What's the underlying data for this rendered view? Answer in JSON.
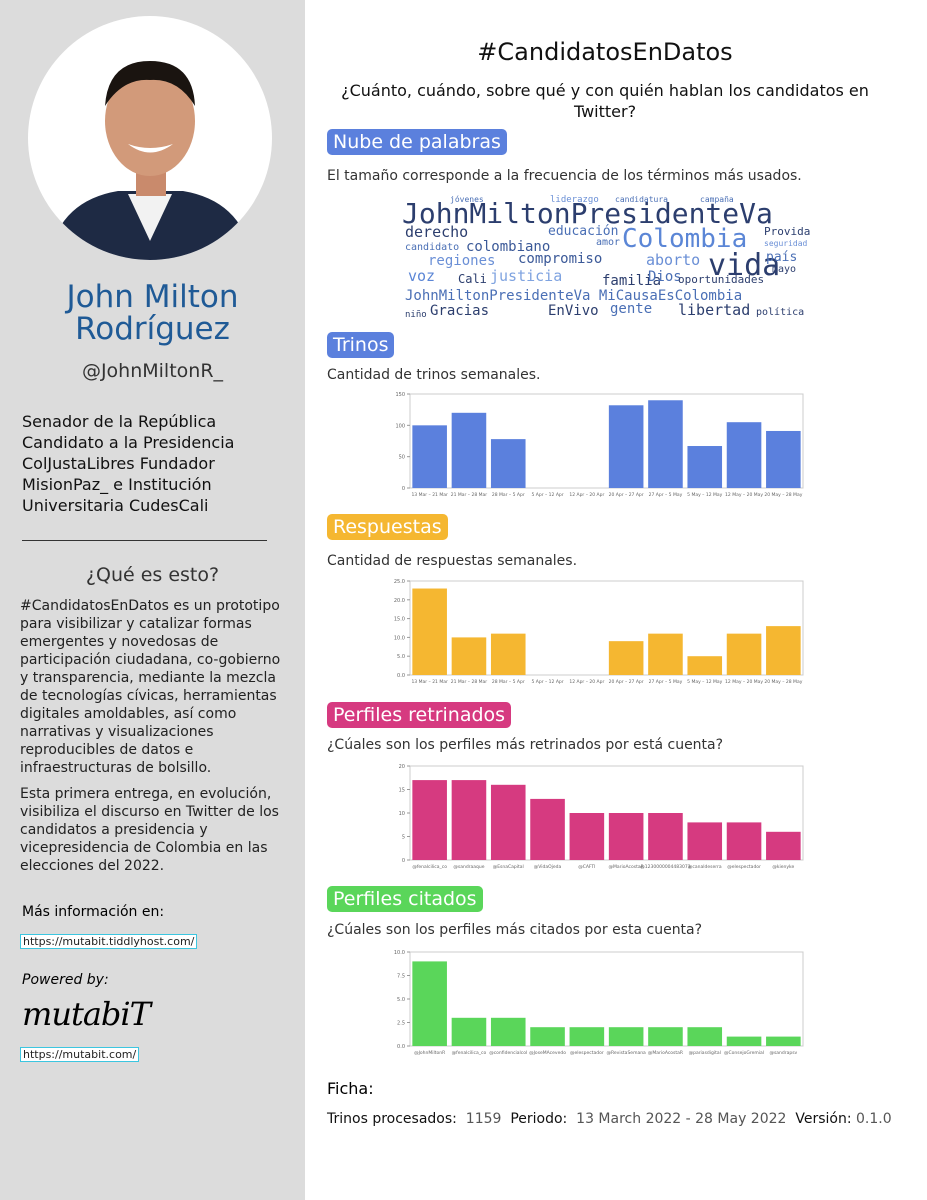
{
  "sidebar": {
    "name": "John Milton Rodríguez",
    "handle": "@JohnMiltonR_",
    "bio": [
      "Senador de la República",
      "Candidato a la Presidencia",
      "ColJustaLibres Fundador MisionPaz_ e Institución Universitaria CudesCali"
    ],
    "about_title": "¿Qué es esto?",
    "about": [
      "#CandidatosEnDatos es un prototipo para visibilizar y catalizar formas emergentes y novedosas de participación ciudadana, co-gobierno y transparencia, mediante la mezcla de tecnologías cívicas, herramientas digitales amoldables, así como narrativas y visualizaciones reproducibles de datos e infraestructuras de bolsillo.",
      "Esta primera entrega, en evolución, visibiliza el discurso en Twitter de los candidatos a presidencia y vicepresidencia de Colombia en las elecciones del 2022."
    ],
    "more_info": "Más información en:",
    "more_info_link": "https://mutabit.tiddlyhost.com/",
    "powered_by": "Powered by:",
    "logo": "mutabiT",
    "logo_link": "https://mutabit.com/"
  },
  "header": {
    "title": "#CandidatosEnDatos",
    "subtitle": "¿Cuánto, cuándo, sobre qué y con quién hablan los candidatos en Twitter?"
  },
  "sections": [
    {
      "heading": "Nube de palabras",
      "description": "El tamaño corresponde a la frecuencia de los términos más usados."
    },
    {
      "heading": "Trinos",
      "description": "Cantidad de trinos semanales."
    },
    {
      "heading": "Respuestas",
      "description": "Cantidad de respuestas semanales."
    },
    {
      "heading": "Perfiles retrinados",
      "description": "¿Cúales son los perfiles más retrinados por está cuenta?"
    },
    {
      "heading": "Perfiles citados",
      "description": "¿Cúales son los perfiles más citados por esta cuenta?"
    }
  ],
  "word_cloud": {
    "words": [
      "JohnMiltonPresidenteVa",
      "Colombia",
      "vida",
      "derecho",
      "educación",
      "colombiano",
      "candidato",
      "amor",
      "regiones",
      "compromiso",
      "aborto",
      "país",
      "Provida",
      "seguridad",
      "mayo",
      "voz",
      "justicia",
      "familia",
      "Dios",
      "oportunidades",
      "Cali",
      "JohnMiltonPresidenteVa MiCausaEsColombia",
      "Gracias",
      "EnVivo",
      "gente",
      "libertad",
      "política",
      "niño",
      "jóvenes",
      "liderazgo",
      "candidatura",
      "campaña"
    ]
  },
  "chart_data": [
    {
      "type": "bar",
      "color": "#5b80dd",
      "categories": [
        "13 Mar – 21 Mar",
        "21 Mar – 28 Mar",
        "28 Mar – 5 Apr",
        "5 Apr – 12 Apr",
        "12 Apr – 20 Apr",
        "20 Apr – 27 Apr",
        "27 Apr – 5 May",
        "5 May – 12 May",
        "12 May – 20 May",
        "20 May – 28 May"
      ],
      "values": [
        100,
        120,
        78,
        0,
        0,
        132,
        140,
        67,
        105,
        91
      ],
      "ylim": [
        0,
        150
      ],
      "yticks": [
        0,
        50,
        100,
        150
      ]
    },
    {
      "type": "bar",
      "color": "#f5b731",
      "categories": [
        "13 Mar – 21 Mar",
        "21 Mar – 28 Mar",
        "28 Mar – 5 Apr",
        "5 Apr – 12 Apr",
        "12 Apr – 20 Apr",
        "20 Apr – 27 Apr",
        "27 Apr – 5 May",
        "5 May – 12 May",
        "12 May – 20 May",
        "20 May – 28 May"
      ],
      "values": [
        23,
        10,
        11,
        0,
        0,
        9,
        11,
        5,
        11,
        13
      ],
      "ylim": [
        0,
        25
      ],
      "yticks": [
        {
          "value": 0,
          "label": "0.0"
        },
        {
          "value": 5,
          "label": "5.0"
        },
        {
          "value": 10,
          "label": "10.0"
        },
        {
          "value": 15,
          "label": "15.0"
        },
        {
          "value": 20,
          "label": "20.0"
        },
        {
          "value": 25,
          "label": "25.0"
        }
      ]
    },
    {
      "type": "bar",
      "color": "#d63a80",
      "categories": [
        "@fenalcilica_co",
        "@sandraaque",
        "@EsnaCapital",
        "@VidaOjeda",
        "@CAFTI",
        "@MarioAcostaR",
        "@1230000004483073",
        "@canaldeserra",
        "@elespectador",
        "@kienyke"
      ],
      "values": [
        17,
        17,
        16,
        13,
        10,
        10,
        10,
        8,
        8,
        6
      ],
      "ylim": [
        0,
        20
      ],
      "yticks": [
        0,
        5,
        10,
        15,
        20
      ]
    },
    {
      "type": "bar",
      "color": "#5ad65a",
      "categories": [
        "@JohnMiltonR",
        "@fenalcilica_co",
        "@confidencialcol",
        "@JoseMAcevedo",
        "@elespectador",
        "@RevistaSemana",
        "@MarioAcostaR",
        "@pariasdigital",
        "@ConsejoGremial",
        "@sandrapsv"
      ],
      "values": [
        9,
        3,
        3,
        2,
        2,
        2,
        2,
        2,
        1,
        1
      ],
      "ylim": [
        0,
        10
      ],
      "yticks": [
        {
          "value": 0,
          "label": "0.0"
        },
        {
          "value": 2.5,
          "label": "2.5"
        },
        {
          "value": 5,
          "label": "5.0"
        },
        {
          "value": 7.5,
          "label": "7.5"
        },
        {
          "value": 10,
          "label": "10.0"
        }
      ]
    }
  ],
  "footer": {
    "title": "Ficha:",
    "processed_label": "Trinos procesados:",
    "processed": 1159,
    "period_label": "Periodo:",
    "period": "13 March 2022 - 28 May 2022",
    "version_label": "Versión:",
    "version": "0.1.0"
  }
}
